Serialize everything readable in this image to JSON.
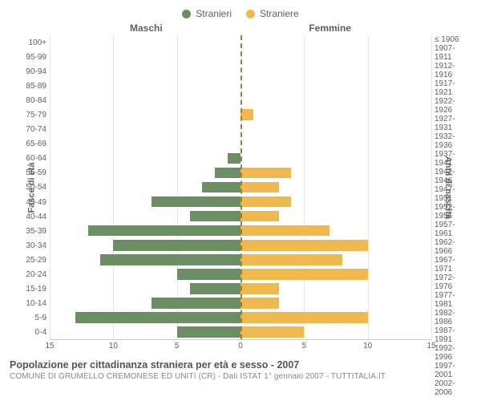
{
  "chart": {
    "type": "population-pyramid",
    "legend": {
      "male": {
        "label": "Stranieri",
        "color": "#6b8e62"
      },
      "female": {
        "label": "Straniere",
        "color": "#f0b94d"
      }
    },
    "column_headers": {
      "male": "Maschi",
      "female": "Femmine"
    },
    "y_axis_left": {
      "title": "Fasce di età"
    },
    "y_axis_right": {
      "title": "Anni di nascita"
    },
    "x_axis": {
      "max": 15,
      "ticks": [
        15,
        10,
        5,
        0,
        5,
        10,
        15
      ]
    },
    "grid_color": "#e6e6e6",
    "center_line_color": "#888844",
    "background_color": "#ffffff",
    "bar_colors": {
      "male": "#6b8e62",
      "female": "#f0b94d"
    },
    "label_fontsize": 10,
    "title_fontsize": 12.5,
    "rows": [
      {
        "age": "100+",
        "birth": "≤ 1906",
        "m": 0,
        "f": 0
      },
      {
        "age": "95-99",
        "birth": "1907-1911",
        "m": 0,
        "f": 0
      },
      {
        "age": "90-94",
        "birth": "1912-1916",
        "m": 0,
        "f": 0
      },
      {
        "age": "85-89",
        "birth": "1917-1921",
        "m": 0,
        "f": 0
      },
      {
        "age": "80-84",
        "birth": "1922-1926",
        "m": 0,
        "f": 0
      },
      {
        "age": "75-79",
        "birth": "1927-1931",
        "m": 0,
        "f": 1
      },
      {
        "age": "70-74",
        "birth": "1932-1936",
        "m": 0,
        "f": 0
      },
      {
        "age": "65-69",
        "birth": "1937-1941",
        "m": 0,
        "f": 0
      },
      {
        "age": "60-64",
        "birth": "1942-1946",
        "m": 1,
        "f": 0
      },
      {
        "age": "55-59",
        "birth": "1947-1951",
        "m": 2,
        "f": 4
      },
      {
        "age": "50-54",
        "birth": "1952-1956",
        "m": 3,
        "f": 3
      },
      {
        "age": "45-49",
        "birth": "1957-1961",
        "m": 7,
        "f": 4
      },
      {
        "age": "40-44",
        "birth": "1962-1966",
        "m": 4,
        "f": 3
      },
      {
        "age": "35-39",
        "birth": "1967-1971",
        "m": 12,
        "f": 7
      },
      {
        "age": "30-34",
        "birth": "1972-1976",
        "m": 10,
        "f": 10
      },
      {
        "age": "25-29",
        "birth": "1977-1981",
        "m": 11,
        "f": 8
      },
      {
        "age": "20-24",
        "birth": "1982-1986",
        "m": 5,
        "f": 10
      },
      {
        "age": "15-19",
        "birth": "1987-1991",
        "m": 4,
        "f": 3
      },
      {
        "age": "10-14",
        "birth": "1992-1996",
        "m": 7,
        "f": 3
      },
      {
        "age": "5-9",
        "birth": "1997-2001",
        "m": 13,
        "f": 10
      },
      {
        "age": "0-4",
        "birth": "2002-2006",
        "m": 5,
        "f": 5
      }
    ],
    "footer": {
      "title": "Popolazione per cittadinanza straniera per età e sesso - 2007",
      "subtitle": "COMUNE DI GRUMELLO CREMONESE ED UNITI (CR) - Dati ISTAT 1° gennaio 2007 - TUTTITALIA.IT"
    }
  }
}
